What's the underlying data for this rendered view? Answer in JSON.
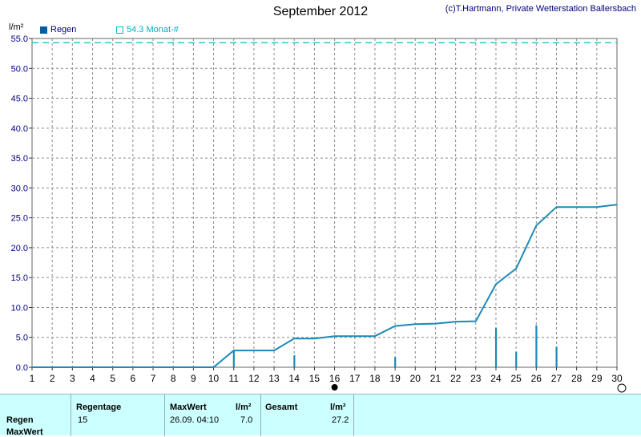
{
  "header": {
    "title": "September 2012",
    "credit": "(c)T.Hartmann, Private Wetterstation Ballersbach",
    "unit": "l/m²"
  },
  "legend": {
    "regen_label": "Regen",
    "regen_color": "#0060a0",
    "monat_label": "54.3 Monat-#",
    "monat_color": "#00c0c0"
  },
  "chart_data": {
    "type": "line",
    "title": "September 2012",
    "ylabel": "l/m²",
    "xlabel": "",
    "xlim": [
      1,
      30
    ],
    "ylim": [
      0,
      55
    ],
    "x_ticks": [
      1,
      2,
      3,
      4,
      5,
      6,
      7,
      8,
      9,
      10,
      11,
      12,
      13,
      14,
      15,
      16,
      17,
      18,
      19,
      20,
      21,
      22,
      23,
      24,
      25,
      26,
      27,
      28,
      29,
      30
    ],
    "y_ticks": [
      "0.0",
      "5.0",
      "10.0",
      "15.0",
      "20.0",
      "25.0",
      "30.0",
      "35.0",
      "40.0",
      "45.0",
      "50.0",
      "55.0"
    ],
    "grid": true,
    "legend_position": "top-left",
    "reference_line": {
      "name": "54.3 Monat-#",
      "value": 54.3,
      "style": "dashed",
      "color": "#00c0c0"
    },
    "series": [
      {
        "name": "Regen",
        "kind": "cumulative",
        "color": "#1a8ab8",
        "x": [
          1,
          10,
          11,
          13,
          14,
          15,
          16,
          18,
          19,
          20,
          21,
          22,
          23,
          24,
          25,
          26,
          27,
          28,
          29,
          30
        ],
        "values": [
          0,
          0,
          2.8,
          2.8,
          4.8,
          4.8,
          5.2,
          5.2,
          6.9,
          7.2,
          7.3,
          7.6,
          7.7,
          13.9,
          16.5,
          23.7,
          26.8,
          26.8,
          26.8,
          27.2
        ]
      },
      {
        "name": "Regen",
        "kind": "daily",
        "color": "#1a8ab8",
        "x": [
          11,
          14,
          19,
          24,
          25,
          26,
          27
        ],
        "values": [
          2.7,
          2.0,
          1.7,
          6.6,
          2.6,
          7.0,
          3.4
        ]
      }
    ],
    "markers": [
      {
        "x": 16,
        "shape": "filled-circle"
      },
      {
        "x": 30,
        "shape": "open-circle"
      }
    ]
  },
  "summary": {
    "row_labels": [
      "Regen",
      "MaxWert"
    ],
    "regentage_header": "Regentage",
    "regentage_value": "15",
    "maxwert_header": "MaxWert",
    "maxwert_unit": "l/m²",
    "maxwert_date": "26.09.  04:10",
    "maxwert_value": "7.0",
    "gesamt_header": "Gesamt",
    "gesamt_unit": "l/m²",
    "gesamt_value": "27.2"
  }
}
